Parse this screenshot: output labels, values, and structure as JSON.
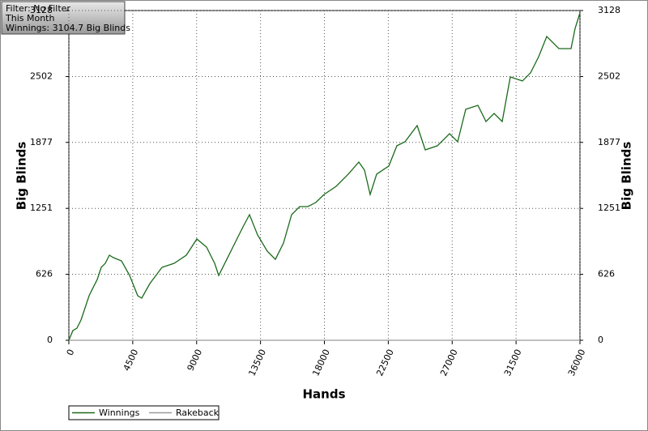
{
  "chart_data": {
    "type": "line",
    "filter_box": [
      "Filter: No Filter",
      "This Month",
      "Winnings: 3104.7 Big Blinds"
    ],
    "x_label": "Hands",
    "y_label": "Big Blinds",
    "y2_label": "Big Blinds",
    "x": [
      0,
      285,
      570,
      855,
      1141,
      1426,
      1711,
      1997,
      2282,
      2567,
      2852,
      3138,
      3708,
      4279,
      4849,
      5134,
      5705,
      6561,
      7417,
      8273,
      9014,
      9698,
      10269,
      10554,
      11125,
      11696,
      12266,
      12723,
      13293,
      13978,
      14548,
      15119,
      15689,
      16260,
      16830,
      17401,
      17971,
      18827,
      19683,
      20424,
      20824,
      21223,
      21679,
      22535,
      23106,
      23676,
      24532,
      25103,
      25958,
      26814,
      27385,
      27955,
      28811,
      29382,
      29952,
      30523,
      31093,
      31949,
      32519,
      33090,
      33660,
      34516,
      35372,
      35658,
      36000
    ],
    "series": [
      {
        "name": "Winnings",
        "color": "#1a6a1a",
        "values": [
          0,
          92,
          115,
          192,
          307,
          423,
          500,
          576,
          692,
          730,
          807,
          784,
          753,
          615,
          423,
          400,
          538,
          692,
          730,
          807,
          961,
          884,
          730,
          615,
          768,
          922,
          1076,
          1191,
          999,
          845,
          768,
          922,
          1191,
          1268,
          1268,
          1307,
          1383,
          1460,
          1576,
          1691,
          1614,
          1383,
          1576,
          1653,
          1845,
          1883,
          2037,
          1806,
          1845,
          1960,
          1883,
          2191,
          2229,
          2075,
          2152,
          2075,
          2498,
          2460,
          2537,
          2690,
          2882,
          2767,
          2767,
          2959,
          3104.7
        ]
      },
      {
        "name": "Rakeback",
        "color": "#999999",
        "values": [
          0,
          0,
          0,
          0,
          0,
          0,
          0,
          0,
          0,
          0,
          0,
          0,
          0,
          0,
          0,
          0,
          0,
          0,
          0,
          0,
          0,
          0,
          0,
          0,
          0,
          0,
          0,
          0,
          0,
          0,
          0,
          0,
          0,
          0,
          0,
          0,
          0,
          0,
          0,
          0,
          0,
          0,
          0,
          0,
          0,
          0,
          0,
          0,
          0,
          0,
          0,
          0,
          0,
          0,
          0,
          0,
          0,
          0,
          0,
          0,
          0,
          0,
          0,
          0,
          0
        ]
      }
    ],
    "xlim": [
      0,
      36000
    ],
    "xticks": [
      0,
      4500,
      9000,
      13500,
      18000,
      22500,
      27000,
      31500,
      36000
    ],
    "ylim": [
      0,
      3128
    ],
    "yticks": [
      0,
      626,
      1251,
      1877,
      2502,
      3128
    ],
    "y2lim": [
      0,
      3128
    ],
    "y2ticks": [
      0,
      626,
      1251,
      1877,
      2502,
      3128
    ],
    "grid": true
  }
}
